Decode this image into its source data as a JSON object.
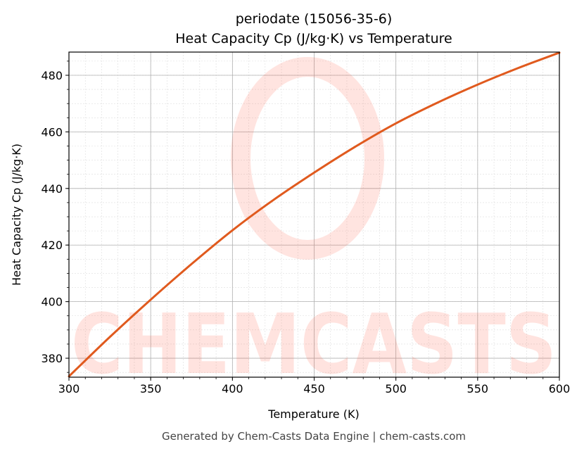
{
  "chart_data": {
    "type": "line",
    "title": "periodate (15056-35-6)",
    "subtitle": "Heat Capacity Cp (J/kg·K) vs Temperature",
    "xlabel": "Temperature (K)",
    "ylabel": "Heat Capacity Cp (J/kg·K)",
    "xlim": [
      300,
      600
    ],
    "ylim": [
      373.3,
      488.2
    ],
    "xticks": [
      "300",
      "350",
      "400",
      "450",
      "500",
      "550",
      "600"
    ],
    "yticks": [
      "380",
      "400",
      "420",
      "440",
      "460",
      "480"
    ],
    "grid": true,
    "series": [
      {
        "color": "#e05a1e",
        "x": [
          300,
          325,
          350,
          375,
          400,
          425,
          450,
          475,
          500,
          525,
          550,
          575,
          600
        ],
        "y": [
          373.6,
          387.5,
          400.7,
          413.3,
          425.2,
          435.9,
          445.6,
          454.7,
          463.0,
          470.2,
          476.7,
          482.6,
          488.0
        ]
      }
    ],
    "watermark": "CHEMCASTS",
    "footer": "Generated by Chem-Casts Data Engine | chem-casts.com"
  }
}
